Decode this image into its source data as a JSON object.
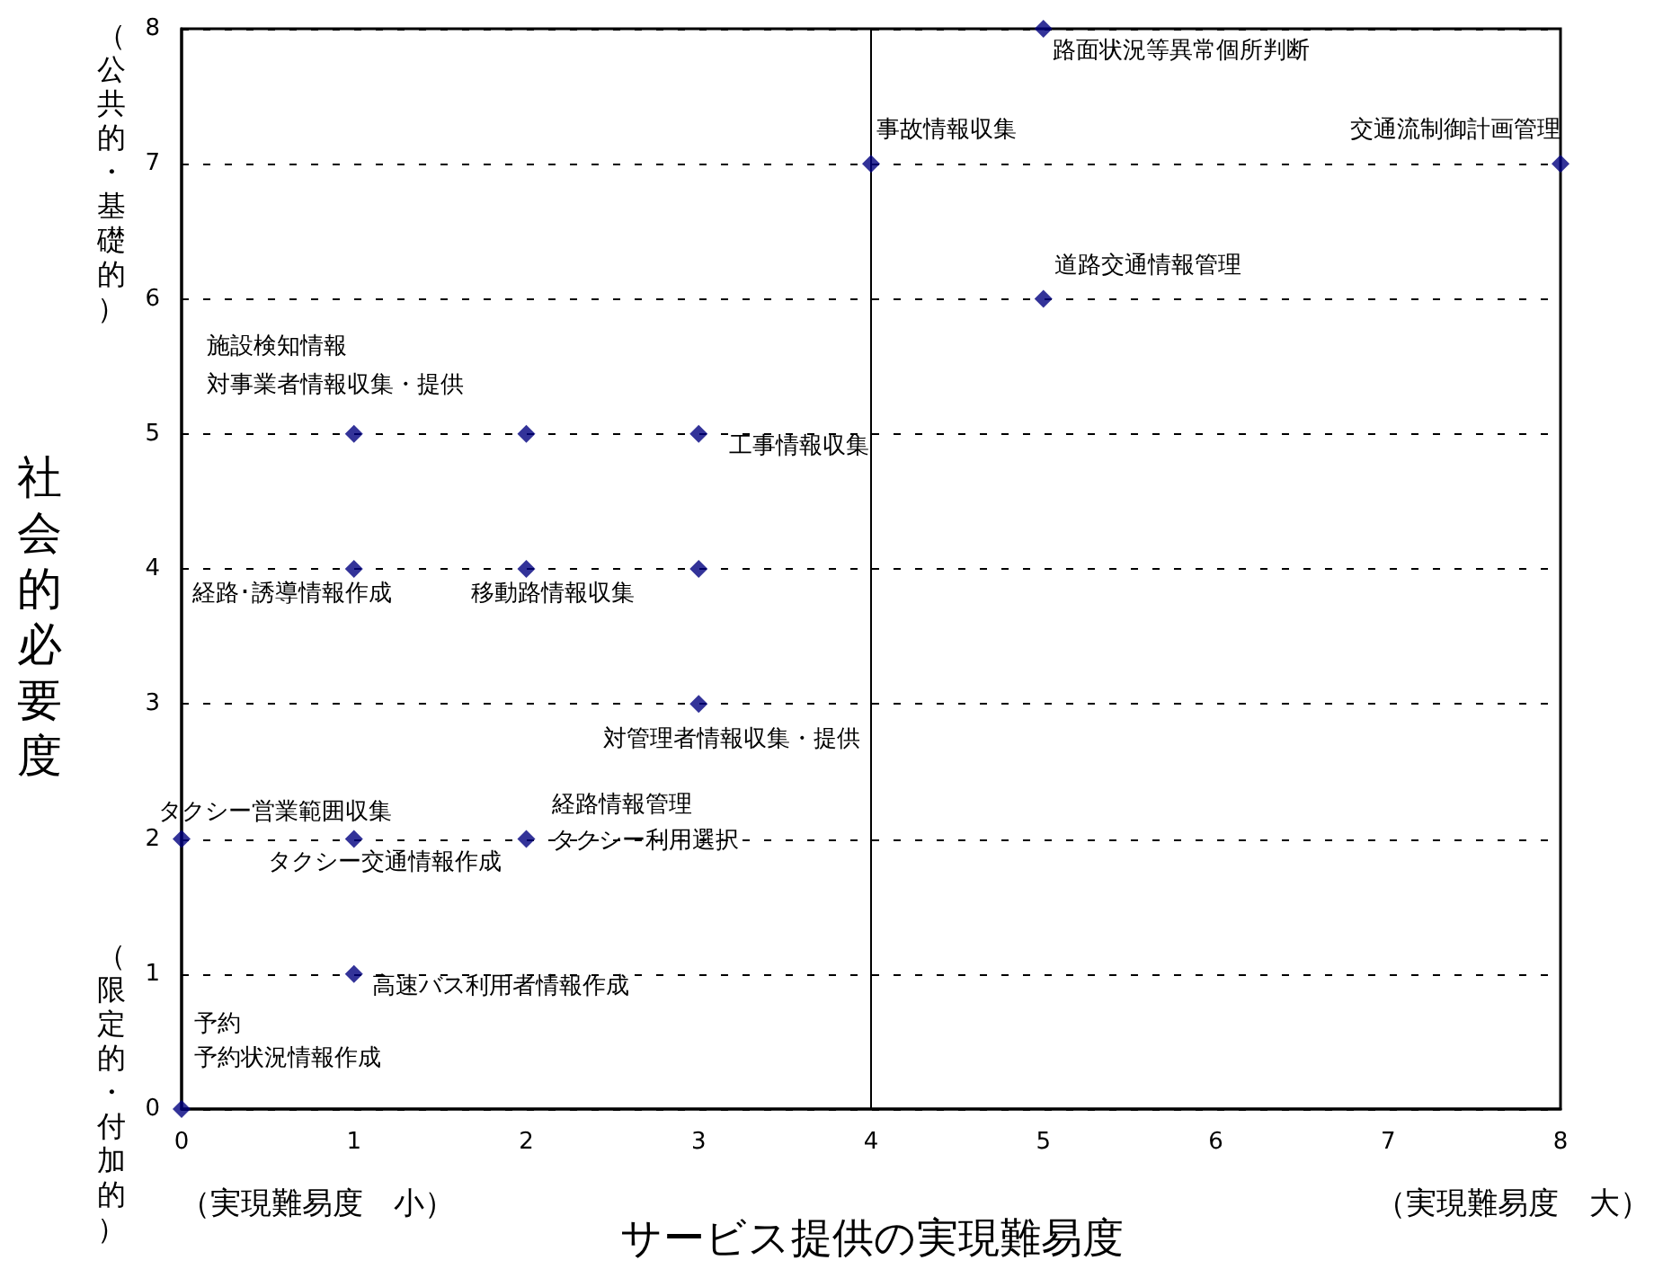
{
  "chart_data": {
    "type": "scatter",
    "xlabel": "サービス提供の実現難易度",
    "ylabel": "社会的必要度",
    "x": [
      5,
      4,
      8,
      5,
      1,
      2,
      3,
      1,
      2,
      3,
      3,
      0,
      1,
      2,
      1,
      0
    ],
    "values": [
      8,
      7,
      7,
      6,
      5,
      5,
      5,
      4,
      4,
      4,
      3,
      2,
      2,
      2,
      1,
      0
    ],
    "color": "#000080",
    "marker": "diamond",
    "xlim": [
      0,
      8
    ],
    "ylim": [
      0,
      8
    ],
    "xticks": [
      0,
      1,
      2,
      3,
      4,
      5,
      6,
      7,
      8
    ],
    "yticks": [
      0,
      1,
      2,
      3,
      4,
      5,
      6,
      7,
      8
    ],
    "grid": "y",
    "ref_lines": [
      {
        "axis": "x",
        "value": 4,
        "color": "#000000",
        "line_style": "solid"
      }
    ],
    "annotations": [
      {
        "text": "路面状況等異常個所判断",
        "x": 5,
        "y": 8
      },
      {
        "text": "事故情報収集",
        "x": 4,
        "y": 7
      },
      {
        "text": "交通流制御計画管理",
        "x": 8,
        "y": 7
      },
      {
        "text": "道路交通情報管理",
        "x": 5,
        "y": 6
      },
      "施設検知情報",
      {
        "text": "対事業者情報収集・提供",
        "x": 1,
        "y": 5
      },
      {
        "text": "工事情報収集",
        "x": 3,
        "y": 5
      },
      {
        "text": "経路･誘導情報作成",
        "x": 1,
        "y": 4
      },
      {
        "text": "移動路情報収集",
        "x": 2,
        "y": 4
      },
      {
        "text": "対管理者情報収集・提供",
        "x": 3,
        "y": 3
      },
      {
        "text": "タクシー営業範囲収集",
        "x": 0,
        "y": 2
      },
      {
        "text": "タクシー交通情報作成",
        "x": 1,
        "y": 2
      },
      {
        "text": "経路情報管理",
        "x": 2,
        "y": 2
      },
      {
        "text": "タクシー利用選択",
        "x": 2,
        "y": 2
      },
      {
        "text": "高速バス利用者情報作成",
        "x": 1,
        "y": 1
      },
      "予約",
      {
        "text": "予約状況情報作成",
        "x": 0,
        "y": 0
      },
      "（公共的・基礎的）",
      "（限定的・付加的）",
      "（実現難易度　小）",
      "（実現難易度　大）"
    ]
  }
}
